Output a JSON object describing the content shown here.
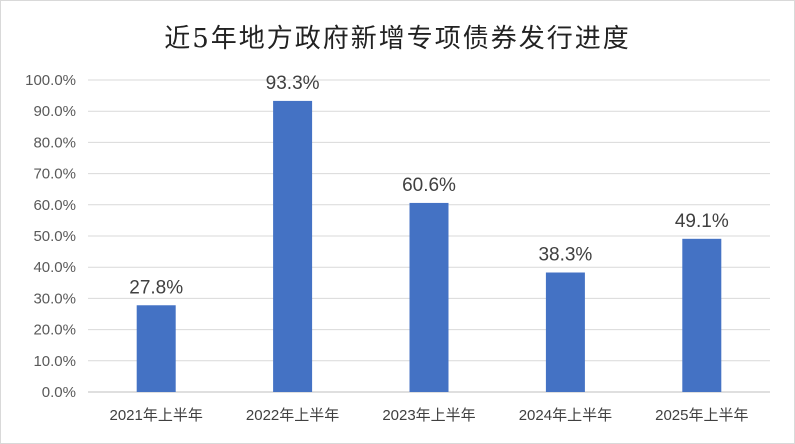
{
  "chart_data": {
    "type": "bar",
    "title": "近5年地方政府新增专项债券发行进度",
    "xlabel": "",
    "ylabel": "",
    "categories": [
      "2021年上半年",
      "2022年上半年",
      "2023年上半年",
      "2024年上半年",
      "2025年上半年"
    ],
    "values": [
      27.8,
      93.3,
      60.6,
      38.3,
      49.1
    ],
    "data_labels": [
      "27.8%",
      "93.3%",
      "60.6%",
      "38.3%",
      "49.1%"
    ],
    "ylim": [
      0,
      100
    ],
    "yticks": [
      "0.0%",
      "10.0%",
      "20.0%",
      "30.0%",
      "40.0%",
      "50.0%",
      "60.0%",
      "70.0%",
      "80.0%",
      "90.0%",
      "100.0%"
    ],
    "grid": true,
    "legend": "none",
    "colors": {
      "bar": "#4472C4",
      "grid": "#d9d9d9",
      "axis": "#bfbfbf"
    }
  }
}
